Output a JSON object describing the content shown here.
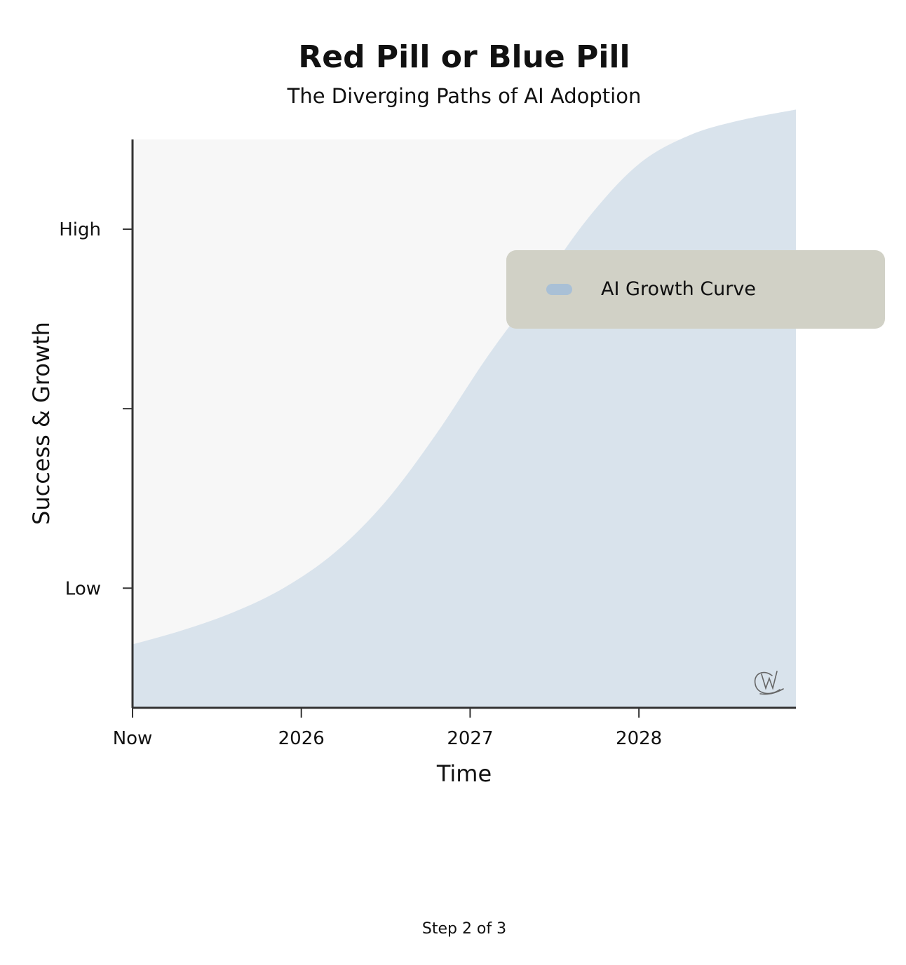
{
  "chart_data": {
    "type": "area",
    "title": "Red Pill or Blue Pill",
    "subtitle": "The Diverging Paths of AI Adoption",
    "xlabel": "Time",
    "ylabel": "Success & Growth",
    "x_ticks": [
      {
        "label": "Now",
        "value": 0
      },
      {
        "label": "2026",
        "value": 1
      },
      {
        "label": "2027",
        "value": 2
      },
      {
        "label": "2028",
        "value": 3
      }
    ],
    "y_ticks": [
      {
        "label": "Low",
        "value": 0.2
      },
      {
        "label": "",
        "value": 0.5
      },
      {
        "label": "High",
        "value": 0.8
      }
    ],
    "xlim": [
      0,
      3.93
    ],
    "ylim": [
      0,
      0.95
    ],
    "series": [
      {
        "name": "AI Growth Curve",
        "color": "#a9c0d6",
        "x": [
          0,
          0.3,
          0.6,
          0.9,
          1.2,
          1.5,
          1.8,
          2.1,
          2.4,
          2.7,
          3.0,
          3.3,
          3.6,
          3.93
        ],
        "y": [
          0.106,
          0.13,
          0.16,
          0.201,
          0.26,
          0.345,
          0.458,
          0.586,
          0.701,
          0.819,
          0.909,
          0.957,
          0.982,
          1.0
        ]
      }
    ],
    "legend_position": "upper-right",
    "grid": false,
    "watermark_icon": "signature-logo-icon"
  },
  "footer": {
    "step_text": "Step 2 of 3"
  },
  "colors": {
    "plot_background": "#f7f7f7",
    "area_fill": "#d9e3ec",
    "legend_background": "#d1d1c6",
    "axis": "#333333"
  }
}
